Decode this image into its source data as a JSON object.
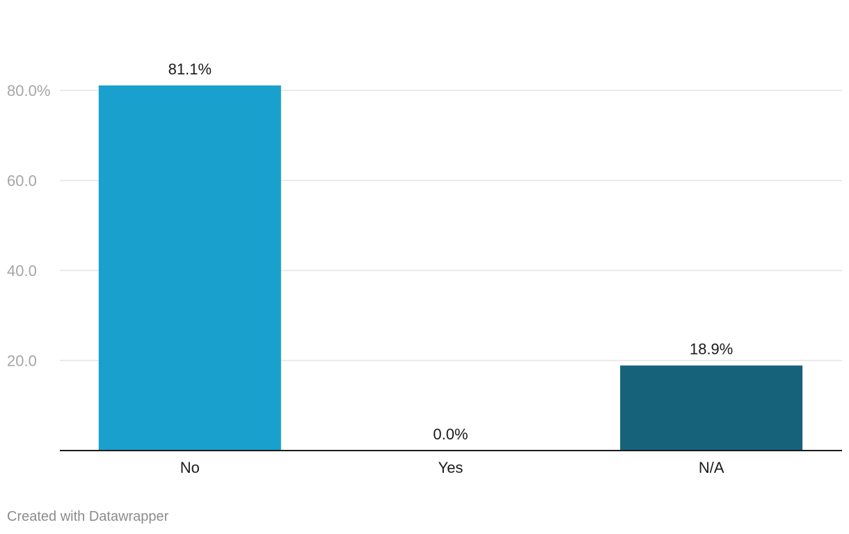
{
  "chart_data": {
    "type": "bar",
    "categories": [
      "No",
      "Yes",
      "N/A"
    ],
    "values": [
      81.1,
      0.0,
      18.9
    ],
    "data_labels": [
      "81.1%",
      "0.0%",
      "18.9%"
    ],
    "colors": [
      "#1aa0cc",
      "#1aa0cc",
      "#16627b"
    ],
    "y_ticks": [
      {
        "value": 20,
        "label": "20.0"
      },
      {
        "value": 40,
        "label": "40.0"
      },
      {
        "value": 60,
        "label": "60.0"
      },
      {
        "value": 80,
        "label": "80.0%"
      }
    ],
    "ylim": [
      0,
      85
    ],
    "grid": true,
    "title": "",
    "xlabel": "",
    "ylabel": ""
  },
  "footer": {
    "credit": "Created with Datawrapper"
  }
}
